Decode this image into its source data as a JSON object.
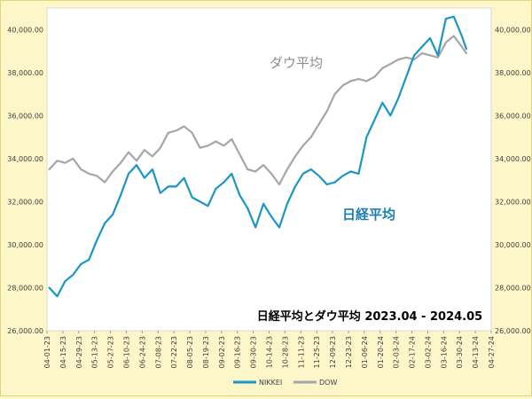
{
  "chart_data": {
    "type": "line",
    "title": "日経平均とダウ平均 2023.04 - 2024.05",
    "xlabel": "",
    "ylabel": "",
    "ylim": [
      26000,
      41000
    ],
    "grid": true,
    "legend_position": "bottom-center",
    "y_ticks": [
      26000,
      28000,
      30000,
      32000,
      34000,
      36000,
      38000,
      40000
    ],
    "y_tick_labels": [
      "26,000.00",
      "28,000.00",
      "30,000.00",
      "32,000.00",
      "34,000.00",
      "36,000.00",
      "38,000.00",
      "40,000.00"
    ],
    "x_tick_labels": [
      "04-01-23",
      "04-15-23",
      "04-29-23",
      "05-13-23",
      "05-27-23",
      "06-10-23",
      "06-24-23",
      "07-08-23",
      "07-22-23",
      "08-05-23",
      "08-19-23",
      "09-02-23",
      "09-16-23",
      "09-30-23",
      "10-14-23",
      "10-28-23",
      "11-11-23",
      "11-25-23",
      "12-09-23",
      "12-23-23",
      "01-06-24",
      "01-20-24",
      "02-03-24",
      "02-17-24",
      "03-02-24",
      "03-16-24",
      "03-30-24",
      "04-13-24",
      "04-27-24"
    ],
    "annotations": [
      "ダウ平均",
      "日経平均"
    ],
    "series": [
      {
        "name": "NIKKEI",
        "color": "#1a96c6",
        "x": [
          "04-03-23",
          "04-10-23",
          "04-17-23",
          "04-24-23",
          "05-01-23",
          "05-08-23",
          "05-15-23",
          "05-22-23",
          "05-29-23",
          "06-05-23",
          "06-12-23",
          "06-19-23",
          "06-26-23",
          "07-03-23",
          "07-10-23",
          "07-17-23",
          "07-24-23",
          "07-31-23",
          "08-07-23",
          "08-14-23",
          "08-21-23",
          "08-28-23",
          "09-04-23",
          "09-11-23",
          "09-18-23",
          "09-25-23",
          "10-02-23",
          "10-09-23",
          "10-16-23",
          "10-23-23",
          "10-30-23",
          "11-06-23",
          "11-13-23",
          "11-20-23",
          "11-27-23",
          "12-04-23",
          "12-11-23",
          "12-18-23",
          "12-25-23",
          "01-01-24",
          "01-08-24",
          "01-15-24",
          "01-22-24",
          "01-29-24",
          "02-05-24",
          "02-12-24",
          "02-19-24",
          "02-26-24",
          "03-04-24",
          "03-11-24",
          "03-18-24",
          "03-25-24",
          "04-01-24",
          "04-05-24"
        ],
        "values": [
          28000,
          27600,
          28300,
          28600,
          29100,
          29300,
          30200,
          31000,
          31400,
          32300,
          33300,
          33700,
          33100,
          33500,
          32400,
          32700,
          32700,
          33100,
          32200,
          32000,
          31800,
          32600,
          32900,
          33300,
          32300,
          31700,
          30800,
          31900,
          31300,
          30800,
          31900,
          32700,
          33300,
          33500,
          33200,
          32800,
          32900,
          33200,
          33400,
          33300,
          35000,
          35800,
          36600,
          36000,
          36800,
          37800,
          38800,
          39200,
          39600,
          38800,
          40500,
          40600,
          39700,
          39100
        ]
      },
      {
        "name": "DOW",
        "color": "#a6a6a6",
        "x": [
          "04-03-23",
          "04-10-23",
          "04-17-23",
          "04-24-23",
          "05-01-23",
          "05-08-23",
          "05-15-23",
          "05-22-23",
          "05-29-23",
          "06-05-23",
          "06-12-23",
          "06-19-23",
          "06-26-23",
          "07-03-23",
          "07-10-23",
          "07-17-23",
          "07-24-23",
          "07-31-23",
          "08-07-23",
          "08-14-23",
          "08-21-23",
          "08-28-23",
          "09-04-23",
          "09-11-23",
          "09-18-23",
          "09-25-23",
          "10-02-23",
          "10-09-23",
          "10-16-23",
          "10-23-23",
          "10-30-23",
          "11-06-23",
          "11-13-23",
          "11-20-23",
          "11-27-23",
          "12-04-23",
          "12-11-23",
          "12-18-23",
          "12-25-23",
          "01-01-24",
          "01-08-24",
          "01-15-24",
          "01-22-24",
          "01-29-24",
          "02-05-24",
          "02-12-24",
          "02-19-24",
          "02-26-24",
          "03-04-24",
          "03-11-24",
          "03-18-24",
          "03-25-24",
          "04-01-24",
          "04-05-24"
        ],
        "values": [
          33500,
          33900,
          33800,
          34000,
          33500,
          33300,
          33200,
          32900,
          33400,
          33800,
          34300,
          33900,
          34400,
          34100,
          34500,
          35200,
          35300,
          35500,
          35200,
          34500,
          34600,
          34800,
          34600,
          34900,
          34200,
          33500,
          33400,
          33700,
          33300,
          32800,
          33500,
          34100,
          34600,
          35000,
          35600,
          36200,
          37000,
          37400,
          37600,
          37700,
          37600,
          37800,
          38200,
          38400,
          38600,
          38700,
          38600,
          38900,
          38800,
          38700,
          39400,
          39700,
          39200,
          38900
        ]
      }
    ]
  }
}
